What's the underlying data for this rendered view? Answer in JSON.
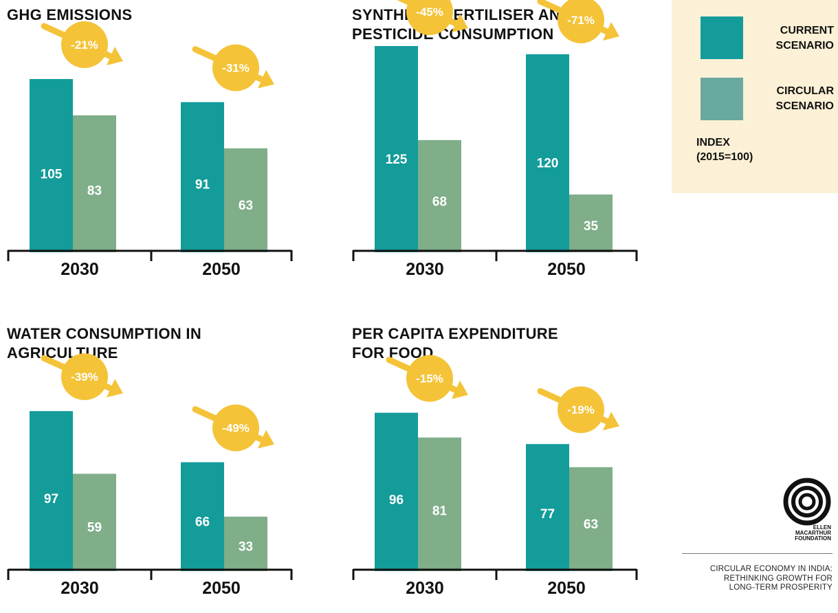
{
  "colors": {
    "current": "#139c9a",
    "circular": "#7fae89",
    "badge": "#f4c338",
    "axis": "#111111",
    "legend_bg": "#fcf1d6",
    "legend_circular": "#6aa9a0"
  },
  "legend": {
    "current_label": "CURRENT\nSCENARIO",
    "circular_label": "CIRCULAR\nSCENARIO",
    "index_label": "INDEX\n(2015=100)"
  },
  "footer": {
    "logo_text": "ELLEN\nMACARTHUR\nFOUNDATION",
    "report_title": "CIRCULAR ECONOMY IN INDIA:\nRETHINKING GROWTH FOR\nLONG-TERM PROSPERITY"
  },
  "chart_data": [
    {
      "type": "bar",
      "title": "GHG EMISSIONS",
      "categories": [
        "2030",
        "2050"
      ],
      "series": [
        {
          "name": "CURRENT SCENARIO",
          "values": [
            105,
            91
          ]
        },
        {
          "name": "CIRCULAR SCENARIO",
          "values": [
            83,
            63
          ]
        }
      ],
      "changes": [
        "-21%",
        "-31%"
      ],
      "ylim": [
        0,
        145
      ]
    },
    {
      "type": "bar",
      "title": "SYNTHETIC FERTILISER AND\nPESTICIDE CONSUMPTION",
      "categories": [
        "2030",
        "2050"
      ],
      "series": [
        {
          "name": "CURRENT SCENARIO",
          "values": [
            125,
            120
          ]
        },
        {
          "name": "CIRCULAR SCENARIO",
          "values": [
            68,
            35
          ]
        }
      ],
      "changes": [
        "-45%",
        "-71%"
      ],
      "ylim": [
        0,
        145
      ]
    },
    {
      "type": "bar",
      "title": "WATER CONSUMPTION IN\nAGRICULTURE",
      "categories": [
        "2030",
        "2050"
      ],
      "series": [
        {
          "name": "CURRENT SCENARIO",
          "values": [
            97,
            66
          ]
        },
        {
          "name": "CIRCULAR SCENARIO",
          "values": [
            59,
            33
          ]
        }
      ],
      "changes": [
        "-39%",
        "-49%"
      ],
      "ylim": [
        0,
        145
      ]
    },
    {
      "type": "bar",
      "title": "PER CAPITA EXPENDITURE\nFOR FOOD",
      "categories": [
        "2030",
        "2050"
      ],
      "series": [
        {
          "name": "CURRENT SCENARIO",
          "values": [
            96,
            77
          ]
        },
        {
          "name": "CIRCULAR SCENARIO",
          "values": [
            81,
            63
          ]
        }
      ],
      "changes": [
        "-15%",
        "-19%"
      ],
      "ylim": [
        0,
        145
      ]
    }
  ]
}
